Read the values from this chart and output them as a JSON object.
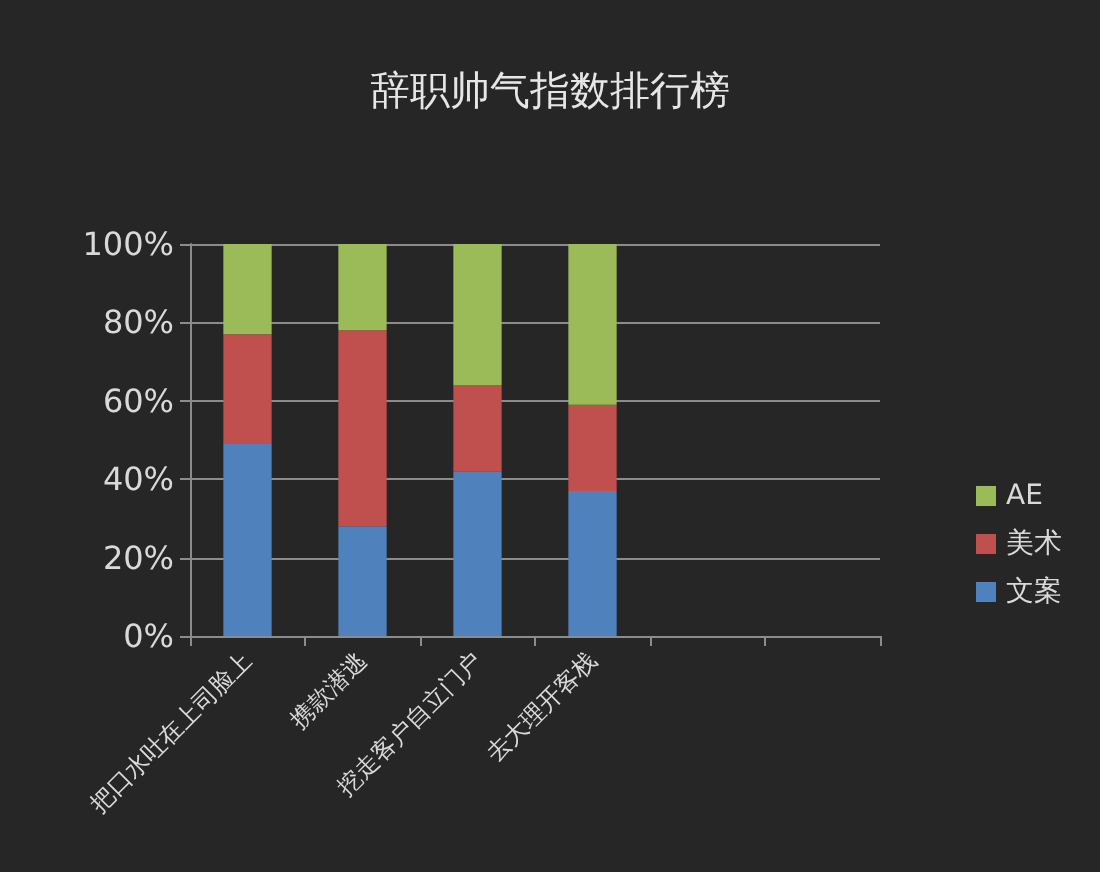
{
  "chart_data": {
    "type": "bar",
    "title": "辞职帅气指数排行榜",
    "categories": [
      "把口水吐在上司脸上",
      "携款潜逃",
      "挖走客户自立门户",
      "去大理开客栈",
      null,
      null
    ],
    "series": [
      {
        "name": "文案",
        "color": "#4f81bd",
        "values": [
          49,
          28,
          42,
          37,
          null,
          null
        ]
      },
      {
        "name": "美术",
        "color": "#c0504d",
        "values": [
          28,
          50,
          22,
          22,
          null,
          null
        ]
      },
      {
        "name": "AE",
        "color": "#9bbb59",
        "values": [
          23,
          22,
          36,
          41,
          null,
          null
        ]
      }
    ],
    "stacked": true,
    "ylim": [
      0,
      100
    ],
    "yticks": [
      {
        "value": 0,
        "label": "0%"
      },
      {
        "value": 20,
        "label": "20%"
      },
      {
        "value": 40,
        "label": "40%"
      },
      {
        "value": 60,
        "label": "60%"
      },
      {
        "value": 80,
        "label": "80%"
      },
      {
        "value": 100,
        "label": "100%"
      }
    ],
    "grid": "y",
    "legend": "right"
  }
}
